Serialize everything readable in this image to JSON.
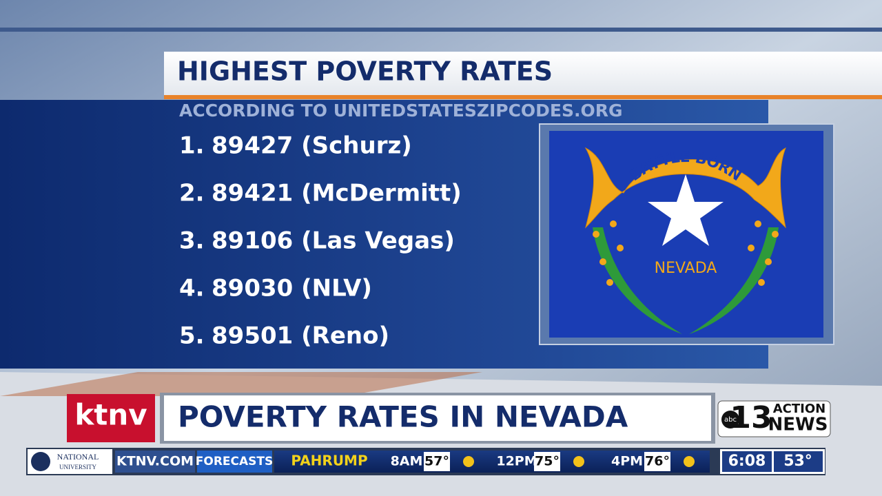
{
  "header": {
    "title": "HIGHEST POVERTY RATES",
    "subtitle": "ACCORDING TO UNITEDSTATESZIPCODES.ORG"
  },
  "list": [
    {
      "rank": "1.",
      "text": "89427 (Schurz)"
    },
    {
      "rank": "2.",
      "text": "89421 (McDermitt)"
    },
    {
      "rank": "3.",
      "text": "89106 (Las Vegas)"
    },
    {
      "rank": "4.",
      "text": "89030 (NLV)"
    },
    {
      "rank": "5.",
      "text": "89501 (Reno)"
    }
  ],
  "flag": {
    "banner": "BATTLE BORN",
    "name": "NEVADA"
  },
  "lower_third": {
    "station": "ktnv",
    "headline": "POVERTY RATES IN NEVADA",
    "logo": {
      "network": "abc",
      "channel": "13",
      "top": "ACTION",
      "bottom": "NEWS"
    }
  },
  "ticker": {
    "sponsor": [
      "NATIONAL",
      "UNIVERSITY"
    ],
    "site": "KTNV.COM",
    "section": "FORECASTS",
    "city": "PAHRUMP",
    "forecast": [
      {
        "time": "8AM",
        "temp": "57°"
      },
      {
        "time": "12PM",
        "temp": "75°"
      },
      {
        "time": "4PM",
        "temp": "76°"
      }
    ],
    "clock": "6:08",
    "current_temp": "53°"
  }
}
